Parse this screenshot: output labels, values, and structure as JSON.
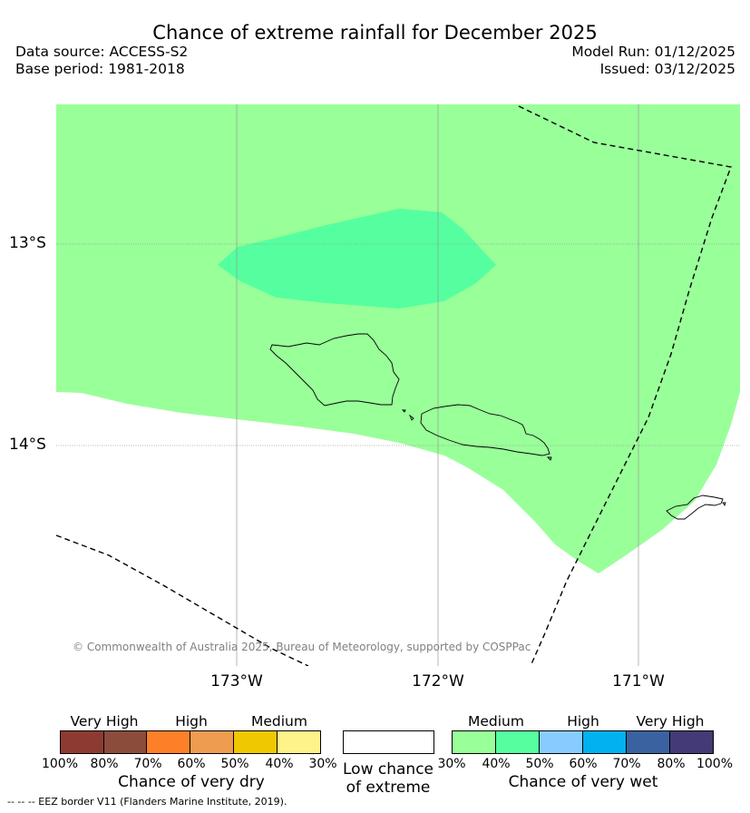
{
  "header": {
    "title": "Chance of extreme rainfall for December 2025",
    "data_source": "Data source: ACCESS-S2",
    "base_period": "Base period: 1981-2018",
    "model_run": "Model Run: 01/12/2025",
    "issued": "Issued: 03/12/2025"
  },
  "map": {
    "lat_labels": [
      "13°S",
      "14°S"
    ],
    "lon_labels": [
      "173°W",
      "172°W",
      "171°W"
    ],
    "attribution": "© Commonwealth of Australia 2025, Bureau of Meteorology, supported by COSPPac",
    "colors": {
      "medium_wet": "#99ff99",
      "wet_40_50": "#55ff9f",
      "background": "#ffffff"
    }
  },
  "legend": {
    "dry": {
      "headings": [
        "Very High",
        "High",
        "Medium"
      ],
      "colors": [
        "#8d3b32",
        "#8b4c3c",
        "#fd8029",
        "#ee9c4f",
        "#f0c801",
        "#fef28a"
      ],
      "ticks": [
        "100%",
        "80%",
        "70%",
        "60%",
        "50%",
        "40%",
        "30%"
      ],
      "title": "Chance of very dry"
    },
    "low": {
      "title_line1": "Low chance",
      "title_line2": "of extreme",
      "color": "#ffffff"
    },
    "wet": {
      "headings": [
        "Medium",
        "High",
        "Very High"
      ],
      "colors": [
        "#99ff99",
        "#55ff9f",
        "#88ccff",
        "#00b2f0",
        "#3a62a0",
        "#433a77"
      ],
      "ticks": [
        "30%",
        "40%",
        "50%",
        "60%",
        "70%",
        "80%",
        "100%"
      ],
      "title": "Chance of very wet"
    }
  },
  "footer": {
    "eez_note": "--  --  -- EEZ border V11 (Flanders Marine Institute, 2019)."
  }
}
